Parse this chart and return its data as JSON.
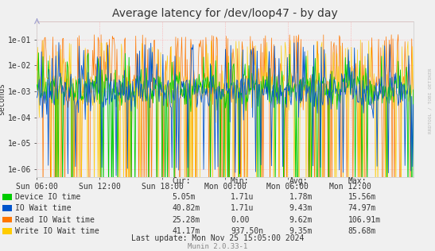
{
  "title": "Average latency for /dev/loop47 - by day",
  "ylabel": "seconds",
  "background_color": "#f0f0f0",
  "plot_bg_color": "#f0f0f0",
  "grid_color": "#ffaaaa",
  "xtick_labels": [
    "Sun 06:00",
    "Sun 12:00",
    "Sun 18:00",
    "Mon 00:00",
    "Mon 06:00",
    "Mon 12:00"
  ],
  "yticks": [
    1e-06,
    1e-05,
    0.0001,
    0.001,
    0.01,
    0.1
  ],
  "ytick_labels": [
    "1e-06",
    "1e-05",
    "1e-04",
    "1e-03",
    "1e-02",
    "1e-01"
  ],
  "series_colors": [
    "#00cc00",
    "#0055cc",
    "#ff7700",
    "#ffcc00"
  ],
  "series_names": [
    "Device IO time",
    "IO Wait time",
    "Read IO Wait time",
    "Write IO Wait time"
  ],
  "legend_cur": [
    "5.05m",
    "40.82m",
    "25.28m",
    "41.17m"
  ],
  "legend_min": [
    "1.71u",
    "1.71u",
    "0.00",
    "937.50n"
  ],
  "legend_avg": [
    "1.78m",
    "9.43m",
    "9.62m",
    "9.35m"
  ],
  "legend_max": [
    "15.56m",
    "74.97m",
    "106.91m",
    "85.68m"
  ],
  "last_update": "Last update: Mon Nov 25 15:05:00 2024",
  "munin_version": "Munin 2.0.33-1",
  "rrdtool_label": "RRDTOOL / TOBI OETIKER",
  "num_points": 500,
  "seed": 42,
  "vline_color": "#ff9999",
  "title_fontsize": 10,
  "axis_label_fontsize": 7,
  "legend_fontsize": 7,
  "tick_fontsize": 7
}
